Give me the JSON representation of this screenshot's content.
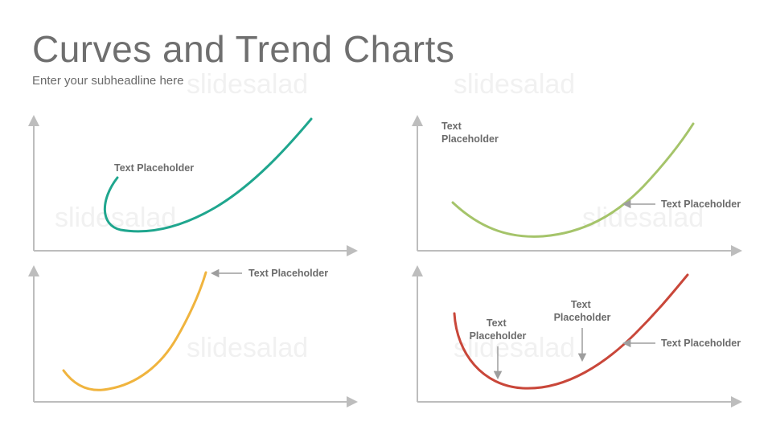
{
  "header": {
    "title": "Curves and Trend Charts",
    "subtitle": "Enter your subheadline here"
  },
  "watermark": "slidesalad",
  "colors": {
    "axis": "#bdbdbd",
    "arrow": "#9e9e9e",
    "label": "#6b6b6b",
    "teal": "#1fa68e",
    "green": "#a5c46a",
    "orange": "#f0b43e",
    "red": "#c9473a"
  },
  "charts": [
    {
      "id": "chart-top-left",
      "curve_color": "teal",
      "labels": [
        {
          "text": "Text Placeholder"
        }
      ]
    },
    {
      "id": "chart-top-right",
      "curve_color": "green",
      "labels": [
        {
          "text": "Text Placeholder",
          "lines": [
            "Text",
            "Placeholder"
          ]
        },
        {
          "text": "Text Placeholder"
        }
      ]
    },
    {
      "id": "chart-bottom-left",
      "curve_color": "orange",
      "labels": [
        {
          "text": "Text Placeholder"
        }
      ]
    },
    {
      "id": "chart-bottom-right",
      "curve_color": "red",
      "labels": [
        {
          "text": "Text Placeholder",
          "lines": [
            "Text",
            "Placeholder"
          ]
        },
        {
          "text": "Text Placeholder",
          "lines": [
            "Text",
            "Placeholder"
          ]
        },
        {
          "text": "Text Placeholder"
        }
      ]
    }
  ]
}
